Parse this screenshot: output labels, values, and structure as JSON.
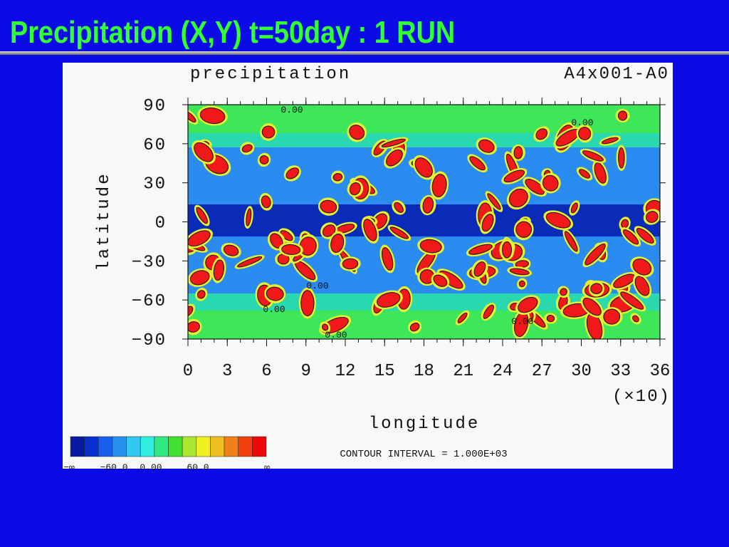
{
  "slide": {
    "title": "Precipitation (X,Y) t=50day : 1 RUN"
  },
  "figure": {
    "title": "precipitation",
    "run_id": "A4x001-A0",
    "y_label": "latitude",
    "x_label": "longitude",
    "x_scale_note": "(×10)",
    "y_tick_labels": [
      "90",
      "60",
      "30",
      "0",
      "−30",
      "−60",
      "−90"
    ],
    "x_tick_labels": [
      "0",
      "3",
      "6",
      "9",
      "12",
      "15",
      "18",
      "21",
      "24",
      "27",
      "30",
      "33",
      "36"
    ],
    "contour_labels": [
      "0.00",
      "0.00",
      "0.00",
      "0.00",
      "0.00",
      "0.00"
    ],
    "colorbar_labels": [
      "−∞",
      "−60.0",
      "0.00",
      "60.0",
      "∞"
    ],
    "contour_interval": "CONTOUR INTERVAL = 1.000E+03"
  }
}
